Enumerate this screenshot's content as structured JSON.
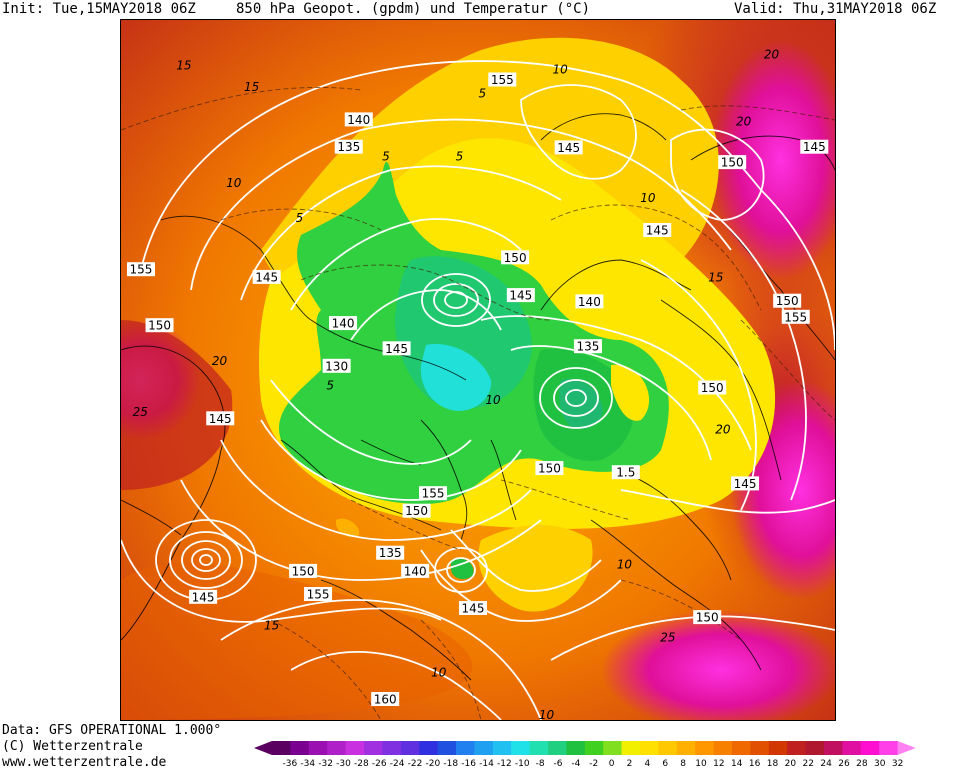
{
  "header": {
    "init": "Init: Tue,15MAY2018 06Z",
    "title": "850 hPa Geopot. (gpdm) und Temperatur (°C)",
    "valid": "Valid: Thu,31MAY2018 06Z"
  },
  "footer": {
    "data_source": "Data: GFS OPERATIONAL 1.000°",
    "copyright": "(C) Wetterzentrale",
    "website": "www.wetterzentrale.de"
  },
  "colors": {
    "scale": [
      "#5a0060",
      "#7a0090",
      "#9a10b0",
      "#b020c8",
      "#c830e0",
      "#a030e0",
      "#8030e0",
      "#6030e0",
      "#3030e0",
      "#2050e0",
      "#2080f0",
      "#20a0f0",
      "#20c0f0",
      "#20e0e8",
      "#20e0b0",
      "#20d080",
      "#20c040",
      "#40d020",
      "#80e020",
      "#f0f000",
      "#ffe000",
      "#ffc800",
      "#ffb000",
      "#ff9800",
      "#f88000",
      "#f06800",
      "#e05000",
      "#d03800",
      "#c02020",
      "#b01830",
      "#c01060",
      "#e010a0",
      "#ff10d0",
      "#ff40e8",
      "#ff80f0"
    ],
    "contour": "#ffffff",
    "coast": "#000000"
  },
  "legend": {
    "ticks": [
      "-36",
      "-34",
      "-32",
      "-30",
      "-28",
      "-26",
      "-24",
      "-22",
      "-20",
      "-18",
      "-16",
      "-14",
      "-12",
      "-10",
      "-8",
      "-6",
      "-4",
      "-2",
      "0",
      "2",
      "4",
      "6",
      "8",
      "10",
      "12",
      "14",
      "16",
      "18",
      "20",
      "22",
      "24",
      "26",
      "28",
      "30",
      "32"
    ]
  },
  "map": {
    "height_labels": [
      {
        "text": "155",
        "gx": 0.534,
        "gy": 0.085
      },
      {
        "text": "140",
        "gx": 0.333,
        "gy": 0.142
      },
      {
        "text": "135",
        "gx": 0.319,
        "gy": 0.181
      },
      {
        "text": "145",
        "gx": 0.627,
        "gy": 0.182
      },
      {
        "text": "150",
        "gx": 0.856,
        "gy": 0.203
      },
      {
        "text": "145",
        "gx": 0.971,
        "gy": 0.181
      },
      {
        "text": "145",
        "gx": 0.751,
        "gy": 0.3
      },
      {
        "text": "155",
        "gx": 0.028,
        "gy": 0.356
      },
      {
        "text": "145",
        "gx": 0.204,
        "gy": 0.367
      },
      {
        "text": "150",
        "gx": 0.552,
        "gy": 0.339
      },
      {
        "text": "145",
        "gx": 0.56,
        "gy": 0.393
      },
      {
        "text": "140",
        "gx": 0.656,
        "gy": 0.402
      },
      {
        "text": "150",
        "gx": 0.933,
        "gy": 0.401
      },
      {
        "text": "155",
        "gx": 0.945,
        "gy": 0.424
      },
      {
        "text": "150",
        "gx": 0.054,
        "gy": 0.436
      },
      {
        "text": "140",
        "gx": 0.311,
        "gy": 0.433
      },
      {
        "text": "145",
        "gx": 0.386,
        "gy": 0.469
      },
      {
        "text": "135",
        "gx": 0.654,
        "gy": 0.466
      },
      {
        "text": "130",
        "gx": 0.302,
        "gy": 0.494
      },
      {
        "text": "150",
        "gx": 0.828,
        "gy": 0.525
      },
      {
        "text": "145",
        "gx": 0.139,
        "gy": 0.569
      },
      {
        "text": "150",
        "gx": 0.6,
        "gy": 0.64
      },
      {
        "text": "1.5",
        "gx": 0.707,
        "gy": 0.646
      },
      {
        "text": "145",
        "gx": 0.874,
        "gy": 0.662
      },
      {
        "text": "155",
        "gx": 0.437,
        "gy": 0.676
      },
      {
        "text": "150",
        "gx": 0.414,
        "gy": 0.701
      },
      {
        "text": "135",
        "gx": 0.377,
        "gy": 0.761
      },
      {
        "text": "150",
        "gx": 0.255,
        "gy": 0.787
      },
      {
        "text": "140",
        "gx": 0.412,
        "gy": 0.787
      },
      {
        "text": "145",
        "gx": 0.115,
        "gy": 0.824
      },
      {
        "text": "155",
        "gx": 0.276,
        "gy": 0.82
      },
      {
        "text": "145",
        "gx": 0.493,
        "gy": 0.84
      },
      {
        "text": "150",
        "gx": 0.821,
        "gy": 0.853
      },
      {
        "text": "160",
        "gx": 0.37,
        "gy": 0.97
      }
    ],
    "temp_labels": [
      {
        "text": "15",
        "gx": 0.088,
        "gy": 0.065
      },
      {
        "text": "15",
        "gx": 0.183,
        "gy": 0.096
      },
      {
        "text": "10",
        "gx": 0.615,
        "gy": 0.071
      },
      {
        "text": "20",
        "gx": 0.911,
        "gy": 0.049
      },
      {
        "text": "20",
        "gx": 0.872,
        "gy": 0.145
      },
      {
        "text": "5",
        "gx": 0.506,
        "gy": 0.105
      },
      {
        "text": "5",
        "gx": 0.474,
        "gy": 0.195
      },
      {
        "text": "5",
        "gx": 0.371,
        "gy": 0.195
      },
      {
        "text": "10",
        "gx": 0.158,
        "gy": 0.233
      },
      {
        "text": "10",
        "gx": 0.738,
        "gy": 0.254
      },
      {
        "text": "5",
        "gx": 0.25,
        "gy": 0.283
      },
      {
        "text": "15",
        "gx": 0.833,
        "gy": 0.368
      },
      {
        "text": "5",
        "gx": 0.293,
        "gy": 0.522
      },
      {
        "text": "20",
        "gx": 0.138,
        "gy": 0.487
      },
      {
        "text": "25",
        "gx": 0.027,
        "gy": 0.56
      },
      {
        "text": "10",
        "gx": 0.521,
        "gy": 0.543
      },
      {
        "text": "20",
        "gx": 0.843,
        "gy": 0.585
      },
      {
        "text": "15",
        "gx": 0.211,
        "gy": 0.865
      },
      {
        "text": "10",
        "gx": 0.445,
        "gy": 0.932
      },
      {
        "text": "10",
        "gx": 0.596,
        "gy": 0.993
      },
      {
        "text": "10",
        "gx": 0.705,
        "gy": 0.778
      },
      {
        "text": "25",
        "gx": 0.766,
        "gy": 0.882
      }
    ]
  }
}
